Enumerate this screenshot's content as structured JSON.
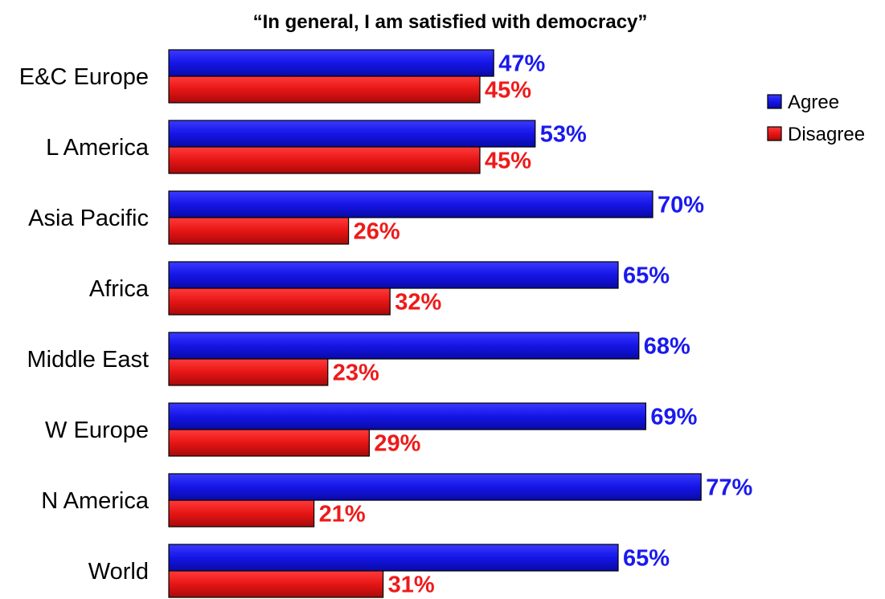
{
  "chart_data": {
    "type": "bar",
    "orientation": "horizontal",
    "title": "“In general, I am satisfied with democracy”",
    "categories": [
      "E&C Europe",
      "L America",
      "Asia Pacific",
      "Africa",
      "Middle East",
      "W Europe",
      "N America",
      "World"
    ],
    "series": [
      {
        "name": "Agree",
        "color": "#1010e0",
        "values": [
          47,
          53,
          70,
          65,
          68,
          69,
          77,
          65
        ],
        "labels": [
          "47%",
          "53%",
          "70%",
          "65%",
          "68%",
          "69%",
          "77%",
          "65%"
        ]
      },
      {
        "name": "Disagree",
        "color": "#e01010",
        "values": [
          45,
          45,
          26,
          32,
          23,
          29,
          21,
          31
        ],
        "labels": [
          "45%",
          "45%",
          "26%",
          "32%",
          "23%",
          "29%",
          "21%",
          "31%"
        ]
      }
    ],
    "label_colors": {
      "Agree": "#1a1aee",
      "Disagree": "#ee1a1a"
    },
    "xlim": [
      0,
      100
    ],
    "grid": false,
    "legend_position": "right"
  }
}
